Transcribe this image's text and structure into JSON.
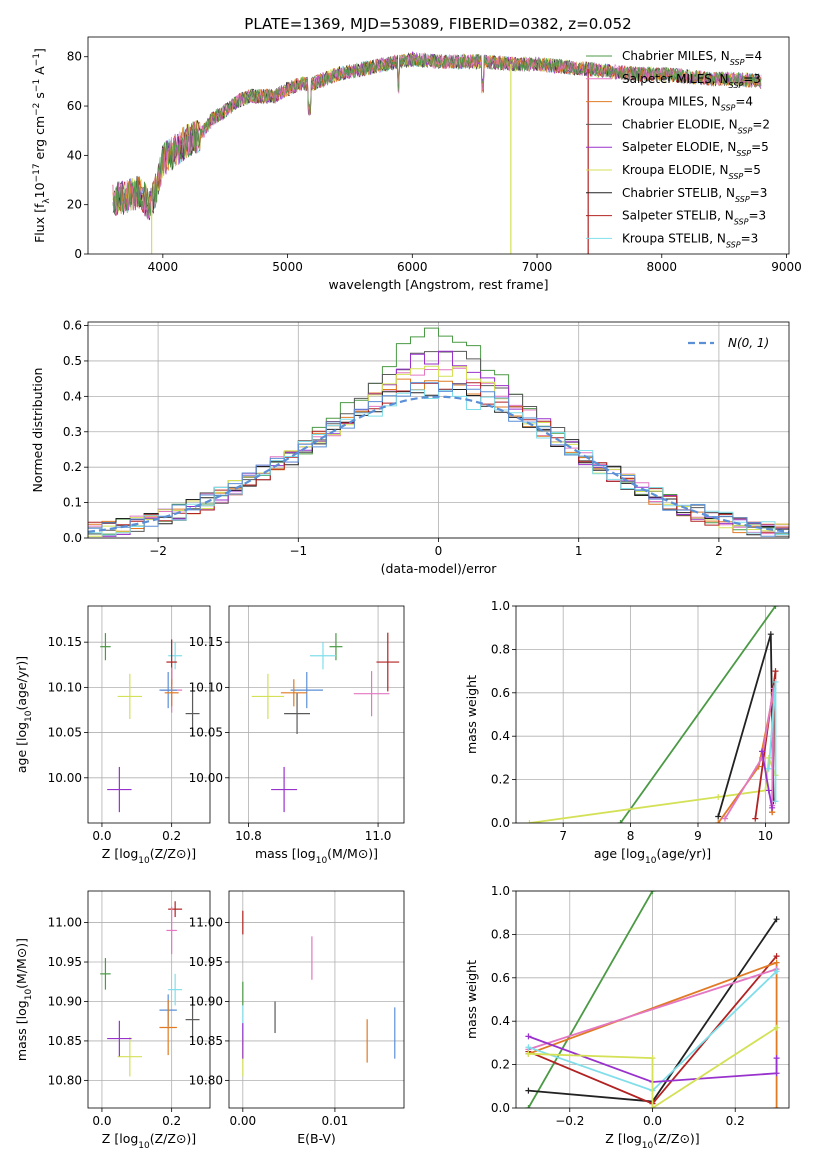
{
  "figure": {
    "title": "PLATE=1369, MJD=53089, FIBERID=0382, z=0.052"
  },
  "chart_data": [
    {
      "id": "spectrum",
      "type": "line",
      "title": "PLATE=1369, MJD=53089, FIBERID=0382, z=0.052",
      "xlabel": "wavelength [Angstrom, rest frame]",
      "ylabel": "Flux [f_λ 10^-17 erg cm^-2 s^-1 A^-1]",
      "xlim": [
        3400,
        9020
      ],
      "ylim": [
        0,
        88
      ],
      "xticks": [
        4000,
        5000,
        6000,
        7000,
        8000,
        9000
      ],
      "yticks": [
        0,
        20,
        40,
        60,
        80
      ],
      "grid": false,
      "legend_position": "right",
      "legend": [
        {
          "label": "Chabrier MILES, N",
          "sub": "SSP",
          "eq": "=4",
          "color": "#4b9a45"
        },
        {
          "label": "Salpeter MILES, N",
          "sub": "SSP",
          "eq": "=3",
          "color": "#e377c2"
        },
        {
          "label": "Kroupa MILES, N",
          "sub": "SSP",
          "eq": "=4",
          "color": "#e07b24"
        },
        {
          "label": "Chabrier ELODIE, N",
          "sub": "SSP",
          "eq": "=2",
          "color": "#5a5a5a"
        },
        {
          "label": "Salpeter ELODIE, N",
          "sub": "SSP",
          "eq": "=5",
          "color": "#9932cc"
        },
        {
          "label": "Kroupa ELODIE, N",
          "sub": "SSP",
          "eq": "=5",
          "color": "#d4e157"
        },
        {
          "label": "Chabrier STELIB, N",
          "sub": "SSP",
          "eq": "=3",
          "color": "#222222"
        },
        {
          "label": "Salpeter STELIB, N",
          "sub": "SSP",
          "eq": "=3",
          "color": "#b22222"
        },
        {
          "label": "Kroupa STELIB, N",
          "sub": "SSP",
          "eq": "=3",
          "color": "#80deea"
        }
      ],
      "continuum": {
        "x": [
          3600,
          3700,
          3800,
          3900,
          3950,
          4000,
          4100,
          4200,
          4300,
          4400,
          4500,
          4600,
          4700,
          4800,
          4900,
          5000,
          5100,
          5200,
          5300,
          5400,
          5500,
          5600,
          5700,
          5800,
          5900,
          6000,
          6200,
          6400,
          6600,
          6800,
          7000,
          7200,
          7400,
          7600,
          7800,
          8000,
          8200,
          8400,
          8600,
          8800
        ],
        "y": [
          22,
          23,
          25,
          20,
          27,
          38,
          42,
          46,
          48,
          55,
          58,
          62,
          64,
          64,
          64,
          67,
          69,
          69,
          71,
          73,
          74,
          75,
          76,
          77,
          78,
          79,
          78,
          78,
          78,
          77,
          77,
          76,
          75,
          74,
          73,
          73,
          72,
          71,
          71,
          70
        ]
      },
      "dropouts": [
        {
          "x": 3910,
          "y": 0
        },
        {
          "x": 6790,
          "y": 0
        },
        {
          "x": 7410,
          "y": 0
        }
      ]
    },
    {
      "id": "residuals",
      "type": "area",
      "xlabel": "(data-model)/error",
      "ylabel": "Normed distribution",
      "xlim": [
        -2.5,
        2.5
      ],
      "ylim": [
        0,
        0.61
      ],
      "xticks": [
        -2,
        -1,
        0,
        1,
        2
      ],
      "yticks": [
        0.0,
        0.1,
        0.2,
        0.3,
        0.4,
        0.5,
        0.6
      ],
      "grid": true,
      "legend_position": "top-right",
      "reference_curve": {
        "label": "N(0, 1)",
        "color": "#5b8fd6"
      },
      "bin_width": 0.1,
      "series": [
        {
          "color": "#4b9a45",
          "peak": 0.58
        },
        {
          "color": "#e377c2",
          "peak": 0.47
        },
        {
          "color": "#e07b24",
          "peak": 0.45
        },
        {
          "color": "#5a5a5a",
          "peak": 0.52
        },
        {
          "color": "#9932cc",
          "peak": 0.51
        },
        {
          "color": "#d4e157",
          "peak": 0.48
        },
        {
          "color": "#222222",
          "peak": 0.42
        },
        {
          "color": "#b22222",
          "peak": 0.44
        },
        {
          "color": "#80deea",
          "peak": 0.4
        },
        {
          "color": "#5b8fd6",
          "peak": 0.43
        }
      ]
    },
    {
      "id": "age_vs_Z",
      "type": "scatter",
      "xlabel": "Z [log10(Z/Z⊙)]",
      "ylabel": "age  [log10(age/yr)]",
      "xlim": [
        -0.04,
        0.31
      ],
      "ylim": [
        9.95,
        10.19
      ],
      "xticks": [
        0.0,
        0.2
      ],
      "yticks": [
        10.0,
        10.05,
        10.1,
        10.15
      ],
      "grid": true,
      "points": [
        {
          "x": 0.01,
          "y": 10.145,
          "ex": 0.03,
          "ey": 0.03,
          "color": "#4b9a45"
        },
        {
          "x": 0.08,
          "y": 10.09,
          "ex": 0.07,
          "ey": 0.05,
          "color": "#d4e157"
        },
        {
          "x": 0.05,
          "y": 9.987,
          "ex": 0.07,
          "ey": 0.05,
          "color": "#9932cc"
        },
        {
          "x": 0.21,
          "y": 10.135,
          "ex": 0.04,
          "ey": 0.03,
          "color": "#80deea"
        },
        {
          "x": 0.2,
          "y": 10.128,
          "ex": 0.03,
          "ey": 0.05,
          "color": "#b22222"
        },
        {
          "x": 0.2,
          "y": 10.097,
          "ex": 0.06,
          "ey": 0.05,
          "color": "#e377c2"
        },
        {
          "x": 0.19,
          "y": 10.097,
          "ex": 0.05,
          "ey": 0.04,
          "color": "#5b8fd6"
        },
        {
          "x": 0.2,
          "y": 10.094,
          "ex": 0.04,
          "ey": 0.03,
          "color": "#e07b24"
        },
        {
          "x": 0.26,
          "y": 10.071,
          "ex": 0.04,
          "ey": 0.05,
          "color": "#5a5a5a"
        }
      ]
    },
    {
      "id": "age_vs_mass",
      "type": "scatter",
      "xlabel": "mass [log10(M/M⊙)]",
      "ylabel": "",
      "xlim": [
        10.77,
        11.04
      ],
      "ylim": [
        9.95,
        10.19
      ],
      "xticks": [
        10.8,
        11.0
      ],
      "yticks": [
        10.0,
        10.05,
        10.1,
        10.15
      ],
      "grid": true,
      "points": [
        {
          "x": 10.935,
          "y": 10.145,
          "ex": 0.02,
          "ey": 0.03,
          "color": "#4b9a45"
        },
        {
          "x": 10.83,
          "y": 10.09,
          "ex": 0.05,
          "ey": 0.05,
          "color": "#d4e157"
        },
        {
          "x": 10.855,
          "y": 9.987,
          "ex": 0.04,
          "ey": 0.05,
          "color": "#9932cc"
        },
        {
          "x": 10.915,
          "y": 10.135,
          "ex": 0.04,
          "ey": 0.03,
          "color": "#80deea"
        },
        {
          "x": 11.015,
          "y": 10.128,
          "ex": 0.035,
          "ey": 0.065,
          "color": "#b22222"
        },
        {
          "x": 10.99,
          "y": 10.093,
          "ex": 0.055,
          "ey": 0.05,
          "color": "#e377c2"
        },
        {
          "x": 10.89,
          "y": 10.097,
          "ex": 0.05,
          "ey": 0.04,
          "color": "#5b8fd6"
        },
        {
          "x": 10.87,
          "y": 10.094,
          "ex": 0.04,
          "ey": 0.03,
          "color": "#e07b24"
        },
        {
          "x": 10.875,
          "y": 10.071,
          "ex": 0.04,
          "ey": 0.045,
          "color": "#5a5a5a"
        }
      ]
    },
    {
      "id": "weight_vs_age",
      "type": "line",
      "xlabel": "age  [log10(age/yr)]",
      "ylabel": "mass weight",
      "xlim": [
        6.3,
        10.35
      ],
      "ylim": [
        0,
        1.0
      ],
      "xticks": [
        7,
        8,
        9,
        10
      ],
      "yticks": [
        0.0,
        0.2,
        0.4,
        0.6,
        0.8,
        1.0
      ],
      "grid": true,
      "series": [
        {
          "color": "#4b9a45",
          "points": [
            [
              7.85,
              0.0
            ],
            [
              10.15,
              1.0
            ]
          ]
        },
        {
          "color": "#d4e157",
          "points": [
            [
              6.5,
              0.0
            ],
            [
              9.3,
              0.12
            ],
            [
              10.0,
              0.15
            ],
            [
              10.05,
              0.3
            ],
            [
              10.15,
              0.22
            ]
          ]
        },
        {
          "color": "#222222",
          "points": [
            [
              9.3,
              0.03
            ],
            [
              10.08,
              0.87
            ],
            [
              10.12,
              0.1
            ]
          ]
        },
        {
          "color": "#b22222",
          "points": [
            [
              9.85,
              0.02
            ],
            [
              10.15,
              0.7
            ],
            [
              10.1,
              0.05
            ]
          ]
        },
        {
          "color": "#e07b24",
          "points": [
            [
              9.3,
              0.0
            ],
            [
              9.9,
              0.26
            ],
            [
              10.12,
              0.6
            ],
            [
              10.1,
              0.05
            ]
          ]
        },
        {
          "color": "#e377c2",
          "points": [
            [
              9.4,
              0.02
            ],
            [
              9.95,
              0.3
            ],
            [
              10.12,
              0.62
            ],
            [
              10.1,
              0.08
            ]
          ]
        },
        {
          "color": "#80deea",
          "points": [
            [
              10.05,
              0.25
            ],
            [
              10.15,
              0.65
            ],
            [
              10.15,
              0.1
            ]
          ]
        },
        {
          "color": "#9932cc",
          "points": [
            [
              9.95,
              0.33
            ],
            [
              10.05,
              0.15
            ],
            [
              10.1,
              0.07
            ]
          ]
        }
      ]
    },
    {
      "id": "mass_vs_Z",
      "type": "scatter",
      "xlabel": "Z [log10(Z/Z⊙)]",
      "ylabel": "mass [log10(M/M⊙)]",
      "xlim": [
        -0.04,
        0.31
      ],
      "ylim": [
        10.765,
        11.04
      ],
      "xticks": [
        0.0,
        0.2
      ],
      "yticks": [
        10.8,
        10.85,
        10.9,
        10.95,
        11.0
      ],
      "grid": true,
      "points": [
        {
          "x": 0.01,
          "y": 10.935,
          "ex": 0.03,
          "ey": 0.04,
          "color": "#4b9a45"
        },
        {
          "x": 0.08,
          "y": 10.83,
          "ex": 0.07,
          "ey": 0.05,
          "color": "#d4e157"
        },
        {
          "x": 0.05,
          "y": 10.853,
          "ex": 0.07,
          "ey": 0.045,
          "color": "#9932cc"
        },
        {
          "x": 0.21,
          "y": 10.915,
          "ex": 0.04,
          "ey": 0.04,
          "color": "#80deea"
        },
        {
          "x": 0.21,
          "y": 11.017,
          "ex": 0.04,
          "ey": 0.02,
          "color": "#b22222"
        },
        {
          "x": 0.2,
          "y": 10.99,
          "ex": 0.03,
          "ey": 0.06,
          "color": "#e377c2"
        },
        {
          "x": 0.19,
          "y": 10.889,
          "ex": 0.05,
          "ey": 0.04,
          "color": "#5b8fd6"
        },
        {
          "x": 0.19,
          "y": 10.867,
          "ex": 0.05,
          "ey": 0.07,
          "color": "#e07b24"
        },
        {
          "x": 0.26,
          "y": 10.877,
          "ex": 0.04,
          "ey": 0.055,
          "color": "#5a5a5a"
        }
      ]
    },
    {
      "id": "mass_vs_EBV",
      "type": "scatter",
      "xlabel": "E(B-V)",
      "ylabel": "",
      "xlim": [
        -0.0015,
        0.0175
      ],
      "ylim": [
        10.765,
        11.04
      ],
      "xticks": [
        0.0,
        0.01
      ],
      "yticks": [
        10.8,
        10.85,
        10.9,
        10.95,
        11.0
      ],
      "grid": true,
      "points": [
        {
          "x": 0.0,
          "y": 11.0,
          "ex": 0,
          "ey": 0.03,
          "color": "#b22222"
        },
        {
          "x": 0.0,
          "y": 10.91,
          "ex": 0,
          "ey": 0.03,
          "color": "#4b9a45"
        },
        {
          "x": 0.0,
          "y": 10.87,
          "ex": 0,
          "ey": 0.05,
          "color": "#80deea"
        },
        {
          "x": 0.0,
          "y": 10.83,
          "ex": 0,
          "ey": 0.05,
          "color": "#d4e157"
        },
        {
          "x": 0.0,
          "y": 10.85,
          "ex": 0,
          "ey": 0.045,
          "color": "#9932cc"
        },
        {
          "x": 0.0035,
          "y": 10.88,
          "ex": 0,
          "ey": 0.04,
          "color": "#5a5a5a"
        },
        {
          "x": 0.0075,
          "y": 10.955,
          "ex": 0,
          "ey": 0.055,
          "color": "#e377c2"
        },
        {
          "x": 0.0135,
          "y": 10.85,
          "ex": 0,
          "ey": 0.055,
          "color": "#e07b24"
        },
        {
          "x": 0.0165,
          "y": 10.86,
          "ex": 0,
          "ey": 0.065,
          "color": "#5b8fd6"
        }
      ]
    },
    {
      "id": "weight_vs_Z",
      "type": "line",
      "xlabel": "Z [log10(Z/Z⊙)]",
      "ylabel": "mass weight",
      "xlim": [
        -0.33,
        0.33
      ],
      "ylim": [
        0,
        1.0
      ],
      "xticks": [
        -0.2,
        0.0,
        0.2
      ],
      "yticks": [
        0.0,
        0.2,
        0.4,
        0.6,
        0.8,
        1.0
      ],
      "grid": true,
      "series": [
        {
          "color": "#4b9a45",
          "points": [
            [
              -0.3,
              0.0
            ],
            [
              0.0,
              1.0
            ]
          ]
        },
        {
          "color": "#222222",
          "points": [
            [
              -0.3,
              0.08
            ],
            [
              0.0,
              0.03
            ],
            [
              0.3,
              0.87
            ]
          ]
        },
        {
          "color": "#b22222",
          "points": [
            [
              -0.3,
              0.26
            ],
            [
              0.0,
              0.02
            ],
            [
              0.3,
              0.7
            ]
          ]
        },
        {
          "color": "#e07b24",
          "points": [
            [
              -0.3,
              0.25
            ],
            [
              0.3,
              0.67
            ],
            [
              0.3,
              0.0
            ]
          ]
        },
        {
          "color": "#e377c2",
          "points": [
            [
              -0.3,
              0.27
            ],
            [
              0.3,
              0.64
            ]
          ]
        },
        {
          "color": "#80deea",
          "points": [
            [
              -0.3,
              0.28
            ],
            [
              0.0,
              0.08
            ],
            [
              0.3,
              0.63
            ]
          ]
        },
        {
          "color": "#9932cc",
          "points": [
            [
              -0.3,
              0.33
            ],
            [
              0.0,
              0.12
            ],
            [
              0.3,
              0.16
            ],
            [
              0.3,
              0.23
            ]
          ]
        },
        {
          "color": "#d4e157",
          "points": [
            [
              -0.3,
              0.25
            ],
            [
              0.0,
              0.23
            ],
            [
              0.0,
              0.0
            ],
            [
              0.3,
              0.37
            ]
          ]
        }
      ]
    }
  ]
}
